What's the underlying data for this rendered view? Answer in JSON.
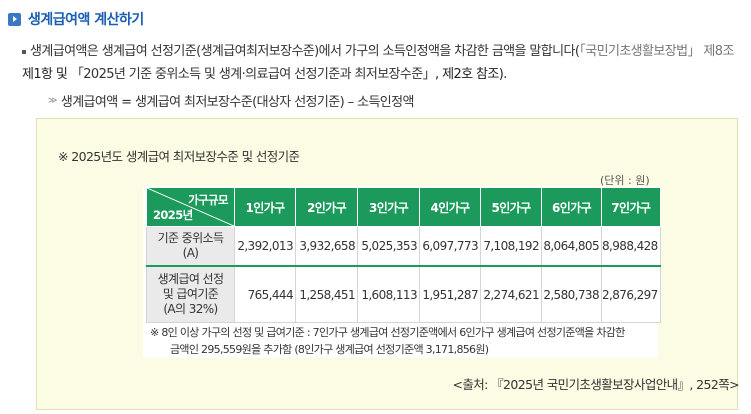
{
  "heading": {
    "title": "생계급여액 계산하기"
  },
  "paragraph": {
    "text_a": "생계급여액은 생계급여 선정기준(생계급여최저보장수준)에서 가구의 소득인정액을 차감한 금액을 말합니다(",
    "cite_1": "「국민기초생활보장법」 제8조",
    "text_b": "제1항 및 ",
    "cite_2": "「2025년 기준 중위소득 및 생계·의료급여 선정기준과 최저보장수준」",
    "text_c": ", 제2호 참조)."
  },
  "formula": {
    "text": "생계급여액 = 생계급여 최저보장수준(대상자 선정기준) – 소득인정액"
  },
  "box": {
    "title": "※ 2025년도 생계급여 최저보장수준 및 선정기준",
    "unit": "(단위 : 원)",
    "note_line1": "※ 8인 이상 가구의 선정 및 급여기준 : 7인가구 생계급여 선정기준액에서 6인가구 생계급여 선정기준액을 차감한",
    "note_line2": "금액인 295,559원을 추가함 (8인가구 생계급여 선정기준액 3,171,856원)",
    "source": "<출처: 『2025년 국민기초생활보장사업안내』, 252쪽>"
  },
  "table": {
    "corner_top": "가구규모",
    "corner_bottom": "2025년",
    "columns": [
      "1인가구",
      "2인가구",
      "3인가구",
      "4인가구",
      "5인가구",
      "6인가구",
      "7인가구"
    ],
    "rows": [
      {
        "label_1": "기준 중위소득",
        "label_2": "(A)",
        "label_3": "",
        "values": [
          "2,392,013",
          "3,932,658",
          "5,025,353",
          "6,097,773",
          "7,108,192",
          "8,064,805",
          "8,988,428"
        ]
      },
      {
        "label_1": "생계급여 선정",
        "label_2": "및 급여기준",
        "label_3": "(A의 32%)",
        "values": [
          "765,444",
          "1,258,451",
          "1,608,113",
          "1,951,287",
          "2,274,621",
          "2,580,738",
          "2,876,297"
        ]
      }
    ]
  },
  "colors": {
    "accent": "#1a5fb4",
    "header_green": "#1b9a5b",
    "box_bg": "#fcfbe4"
  }
}
